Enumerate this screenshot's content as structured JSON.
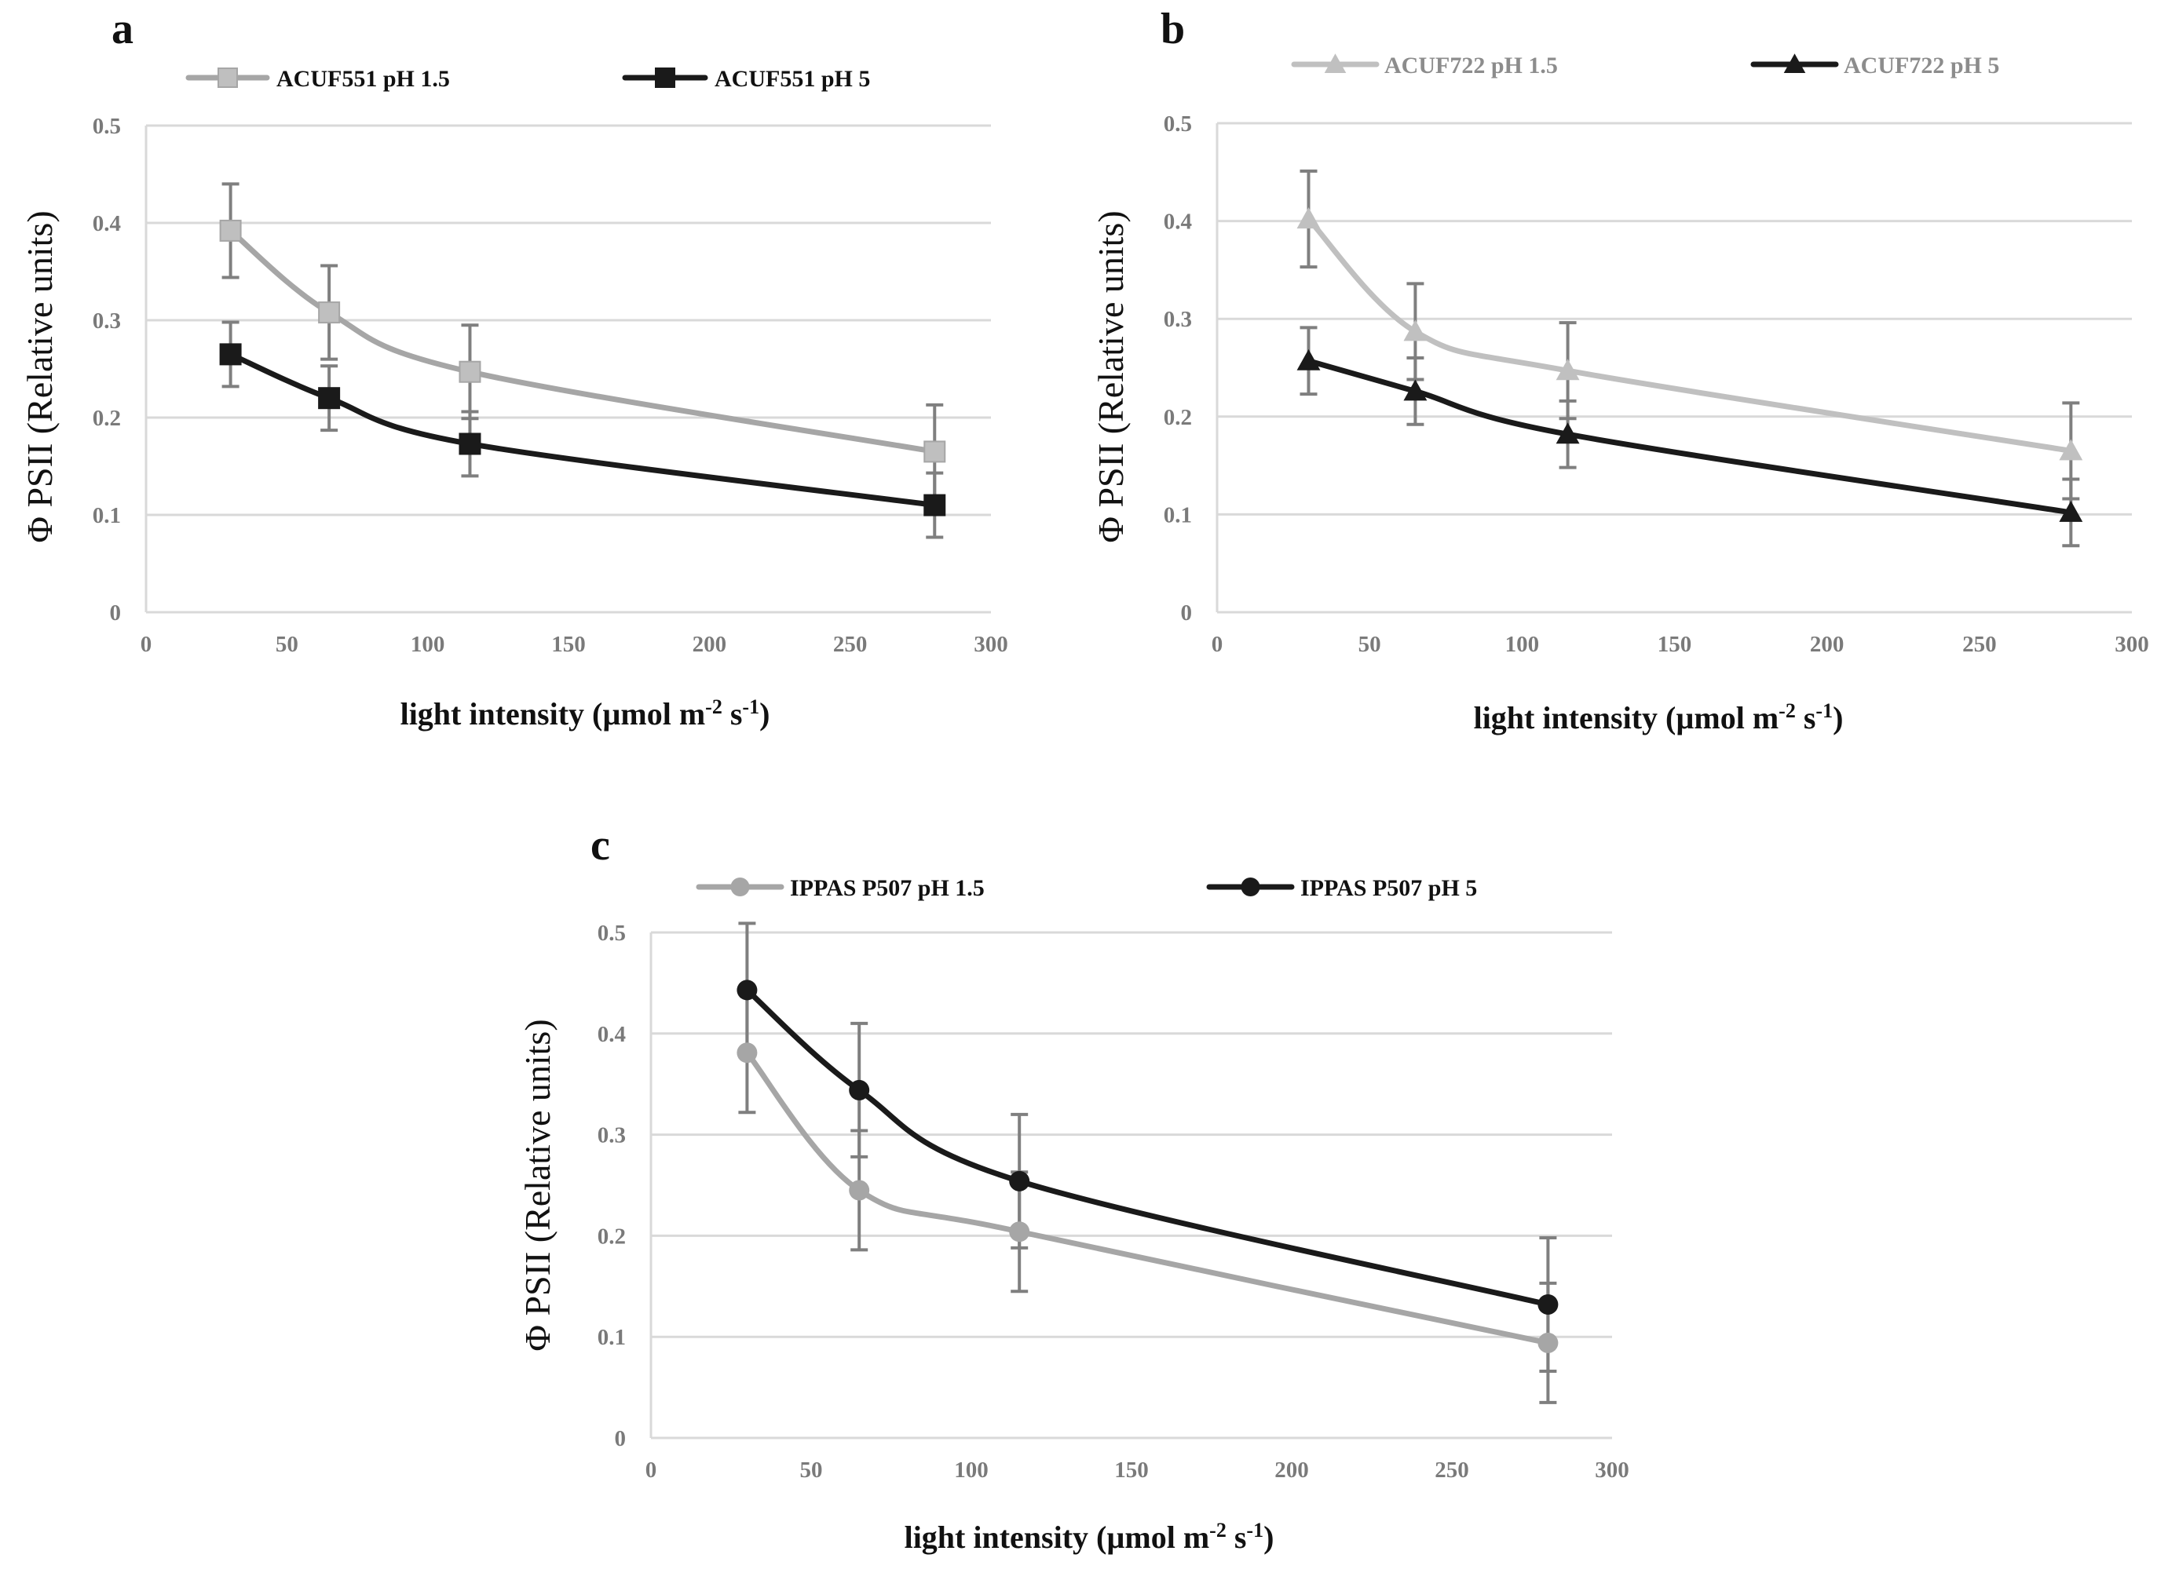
{
  "chart_data": [
    {
      "type": "line",
      "panel": "a",
      "title": "",
      "xlabel": "light intensity (µmol m",
      "xlabel_sup1": "-2",
      "xlabel_mid": " s",
      "xlabel_sup2": "-1",
      "xlabel_end": ")",
      "ylabel": "Φ PSII (Relative units)",
      "xlim": [
        0,
        300
      ],
      "ylim": [
        0,
        0.5
      ],
      "xticks": [
        0,
        50,
        100,
        150,
        200,
        250,
        300
      ],
      "yticks": [
        0,
        0.1,
        0.2,
        0.3,
        0.4,
        0.5
      ],
      "xtick_labels": [
        "0",
        "50",
        "100",
        "150",
        "200",
        "250",
        "300"
      ],
      "ytick_labels": [
        "0",
        "0.1",
        "0.2",
        "0.3",
        "0.4",
        "0.5"
      ],
      "grid": true,
      "legend_position": "top",
      "series": [
        {
          "name": "ACUF551 pH 1.5",
          "color": "#a6a6a6",
          "marker": "square",
          "marker_color": "#bfbfbf",
          "legend_text_color": "#111111",
          "x": [
            30,
            65,
            115,
            280
          ],
          "y": [
            0.392,
            0.308,
            0.247,
            0.165
          ],
          "err": [
            0.048,
            0.048,
            0.048,
            0.048
          ]
        },
        {
          "name": "ACUF551 pH 5",
          "color": "#1a1a1a",
          "marker": "square",
          "marker_color": "#1a1a1a",
          "legend_text_color": "#111111",
          "x": [
            30,
            65,
            115,
            280
          ],
          "y": [
            0.265,
            0.22,
            0.173,
            0.11
          ],
          "err": [
            0.033,
            0.033,
            0.033,
            0.033
          ]
        }
      ]
    },
    {
      "type": "line",
      "panel": "b",
      "title": "",
      "xlabel": "light intensity (µmol m",
      "xlabel_sup1": "-2",
      "xlabel_mid": " s",
      "xlabel_sup2": "-1",
      "xlabel_end": ")",
      "ylabel": "Φ PSII (Relative units)",
      "xlim": [
        0,
        300
      ],
      "ylim": [
        0,
        0.5
      ],
      "xticks": [
        0,
        50,
        100,
        150,
        200,
        250,
        300
      ],
      "yticks": [
        0,
        0.1,
        0.2,
        0.3,
        0.4,
        0.5
      ],
      "xtick_labels": [
        "0",
        "50",
        "100",
        "150",
        "200",
        "250",
        "300"
      ],
      "ytick_labels": [
        "0",
        "0.1",
        "0.2",
        "0.3",
        "0.4",
        "0.5"
      ],
      "grid": true,
      "legend_position": "top",
      "series": [
        {
          "name": "ACUF722 pH 1.5",
          "color": "#c0c0c0",
          "marker": "triangle",
          "marker_color": "#c0c0c0",
          "legend_text_color": "#8c8c8c",
          "x": [
            30,
            65,
            115,
            280
          ],
          "y": [
            0.402,
            0.287,
            0.247,
            0.165
          ],
          "err": [
            0.049,
            0.049,
            0.049,
            0.049
          ]
        },
        {
          "name": "ACUF722 pH 5",
          "color": "#1a1a1a",
          "marker": "triangle",
          "marker_color": "#1a1a1a",
          "legend_text_color": "#8c8c8c",
          "x": [
            30,
            65,
            115,
            280
          ],
          "y": [
            0.257,
            0.226,
            0.182,
            0.102
          ],
          "err": [
            0.034,
            0.034,
            0.034,
            0.034
          ]
        }
      ]
    },
    {
      "type": "line",
      "panel": "c",
      "title": "",
      "xlabel": "light intensity (µmol m",
      "xlabel_sup1": "-2",
      "xlabel_mid": " s",
      "xlabel_sup2": "-1",
      "xlabel_end": ")",
      "ylabel": "Φ PSII (Relative units)",
      "xlim": [
        0,
        300
      ],
      "ylim": [
        0,
        0.5
      ],
      "xticks": [
        0,
        50,
        100,
        150,
        200,
        250,
        300
      ],
      "yticks": [
        0,
        0.1,
        0.2,
        0.3,
        0.4,
        0.5
      ],
      "xtick_labels": [
        "0",
        "50",
        "100",
        "150",
        "200",
        "250",
        "300"
      ],
      "ytick_labels": [
        "0",
        "0.1",
        "0.2",
        "0.3",
        "0.4",
        "0.5"
      ],
      "grid": true,
      "legend_position": "top",
      "series": [
        {
          "name": "IPPAS P507 pH 1.5",
          "color": "#a6a6a6",
          "marker": "circle",
          "marker_color": "#a6a6a6",
          "legend_text_color": "#111111",
          "x": [
            30,
            65,
            115,
            280
          ],
          "y": [
            0.381,
            0.245,
            0.204,
            0.094
          ],
          "err": [
            0.059,
            0.059,
            0.059,
            0.059
          ]
        },
        {
          "name": "IPPAS P507 pH 5",
          "color": "#1a1a1a",
          "marker": "circle",
          "marker_color": "#1a1a1a",
          "legend_text_color": "#111111",
          "x": [
            30,
            65,
            115,
            280
          ],
          "y": [
            0.443,
            0.344,
            0.254,
            0.132
          ],
          "err": [
            0.066,
            0.066,
            0.066,
            0.066
          ]
        }
      ]
    }
  ]
}
